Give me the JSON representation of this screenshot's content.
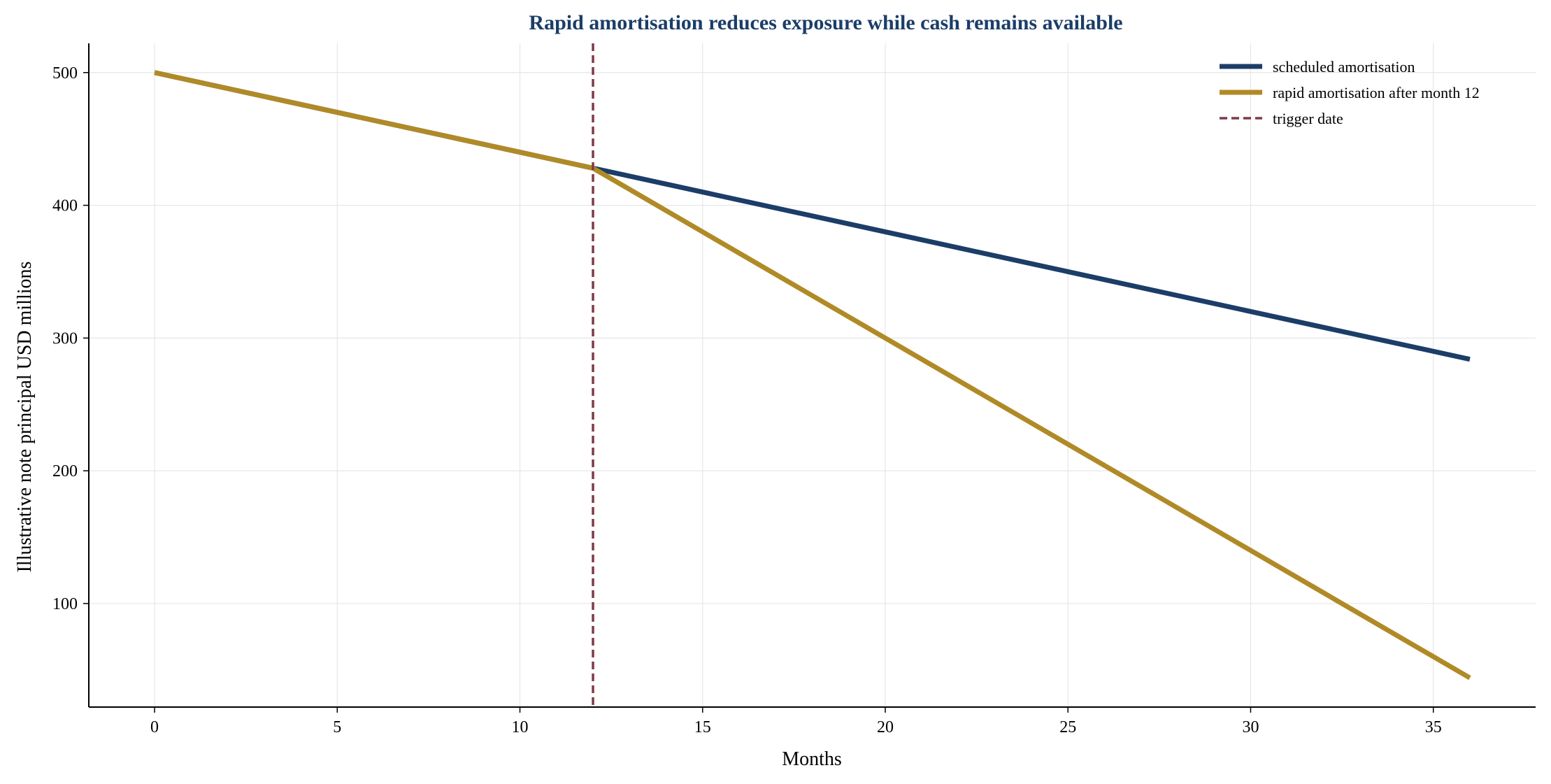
{
  "chart_data": {
    "type": "line",
    "title": "Rapid amortisation reduces exposure while cash remains available",
    "xlabel": "Months",
    "ylabel": "Illustrative note principal USD millions",
    "xlim": [
      -1.8,
      37.8
    ],
    "ylim": [
      22,
      522
    ],
    "x_ticks": [
      0,
      5,
      10,
      15,
      20,
      25,
      30,
      35
    ],
    "y_ticks": [
      100,
      200,
      300,
      400,
      500
    ],
    "grid": true,
    "legend_position": "top-right",
    "series": [
      {
        "name": "scheduled amortisation",
        "color": "#1b3d68",
        "x": [
          0,
          12,
          36
        ],
        "y": [
          500,
          428,
          284
        ]
      },
      {
        "name": "rapid amortisation after month 12",
        "color": "#b08a26",
        "x": [
          0,
          12,
          36
        ],
        "y": [
          500,
          428,
          44
        ]
      }
    ],
    "reference_lines": [
      {
        "name": "trigger date",
        "orientation": "vertical",
        "x": 12,
        "color": "#7f3b48",
        "style": "dashed"
      }
    ],
    "colors": {
      "title": "#1b3d68",
      "grid": "#e6e6e6",
      "axis": "#000000"
    }
  }
}
